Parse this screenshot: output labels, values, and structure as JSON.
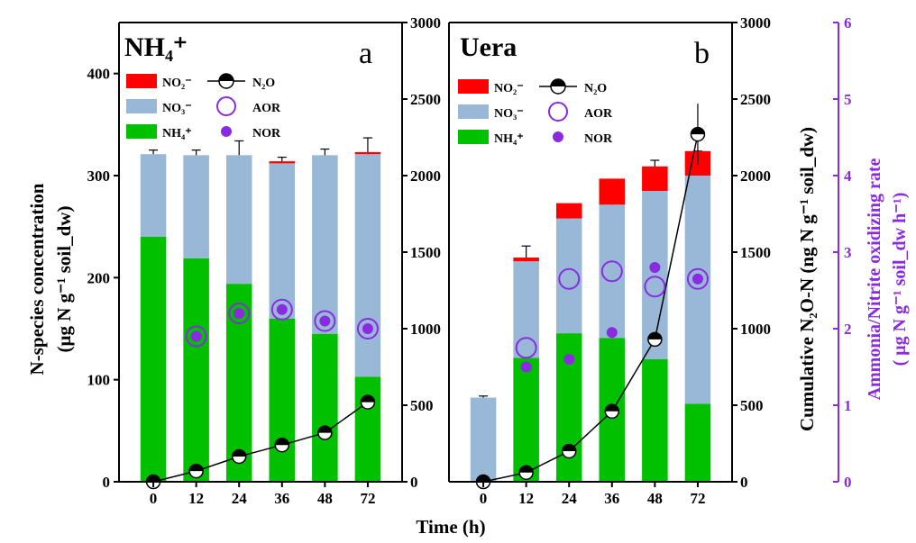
{
  "x_axis_label": "Time (h)",
  "left_axis_label_line1": "N-species concentration",
  "left_axis_label_line2": "(μg N g⁻¹ soil_dw)",
  "mid_axis_label": "Cumulative N₂O-N (ng N g⁻¹ soil_dw)",
  "right_axis_label_line1": "Ammonia/Nitrite oxidizing rate",
  "right_axis_label_line2": "( μg N g⁻¹ soil_dw h⁻¹)",
  "legend": {
    "no2": "NO₂⁻",
    "no3": "NO₃⁻",
    "nh4": "NH₄⁺",
    "n2o": "N₂O",
    "aor": "AOR",
    "nor": "NOR"
  },
  "colors": {
    "nh4": "#00c000",
    "no3": "#99b8d8",
    "no2": "#ff0000",
    "purple": "#8a2be2"
  },
  "chart_data": [
    {
      "type": "bar",
      "panel_title": "NH₄⁺",
      "panel_letter": "a",
      "categories": [
        "0",
        "12",
        "24",
        "36",
        "48",
        "72"
      ],
      "stacked": true,
      "y_left_lim": [
        0,
        450
      ],
      "y_left_ticks": [
        0,
        100,
        200,
        300,
        400
      ],
      "y_mid_lim": [
        0,
        3000
      ],
      "y_mid_ticks": [
        0,
        500,
        1000,
        1500,
        2000,
        2500,
        3000
      ],
      "series": [
        {
          "name": "NH₄⁺",
          "values": [
            240,
            219,
            194,
            160,
            145,
            103
          ],
          "errors": [
            4,
            6,
            11,
            12,
            16,
            14
          ]
        },
        {
          "name": "NO₃⁻",
          "values": [
            81,
            101,
            126,
            152,
            175,
            218
          ],
          "errors": [
            4,
            5,
            14,
            6,
            6,
            16
          ]
        },
        {
          "name": "NO₂⁻",
          "values": [
            0,
            0,
            0,
            2,
            0,
            2
          ],
          "errors": [
            0,
            0,
            0,
            0,
            0,
            0
          ]
        }
      ],
      "n2o": {
        "values": [
          0,
          70,
          165,
          240,
          320,
          520
        ],
        "errors": [
          0,
          0,
          0,
          15,
          0,
          20
        ]
      },
      "aor": [
        null,
        1.9,
        2.2,
        2.25,
        2.1,
        2.0
      ],
      "nor": [
        null,
        1.9,
        2.2,
        2.25,
        2.1,
        2.0
      ]
    },
    {
      "type": "bar",
      "panel_title": "Uera",
      "panel_letter": "b",
      "categories": [
        "0",
        "12",
        "24",
        "36",
        "48",
        "72"
      ],
      "stacked": true,
      "y_left_lim": [
        0,
        3000
      ],
      "y_left_ticks": [
        0,
        500,
        1000,
        1500,
        2000,
        2500,
        3000
      ],
      "y_right_lim": [
        0,
        6
      ],
      "y_right_ticks": [
        0,
        1,
        2,
        3,
        4,
        5,
        6
      ],
      "series": [
        {
          "name": "NH₄⁺",
          "values": [
            0,
            810,
            970,
            940,
            800,
            510
          ],
          "errors": [
            0,
            0,
            60,
            40,
            70,
            40
          ]
        },
        {
          "name": "NO₃⁻",
          "values": [
            550,
            630,
            750,
            870,
            1100,
            1490
          ],
          "errors": [
            10,
            100,
            20,
            70,
            200,
            160
          ]
        },
        {
          "name": "NO₂⁻",
          "values": [
            0,
            25,
            100,
            170,
            160,
            160
          ],
          "errors": [
            0,
            0,
            0,
            0,
            0,
            0
          ]
        }
      ],
      "n2o": {
        "values": [
          0,
          60,
          200,
          460,
          930,
          2270
        ],
        "errors": [
          0,
          0,
          0,
          0,
          0,
          200
        ]
      },
      "aor": [
        null,
        1.75,
        2.65,
        2.75,
        2.55,
        2.65
      ],
      "nor": [
        null,
        1.5,
        1.6,
        1.95,
        2.8,
        2.65
      ]
    }
  ]
}
